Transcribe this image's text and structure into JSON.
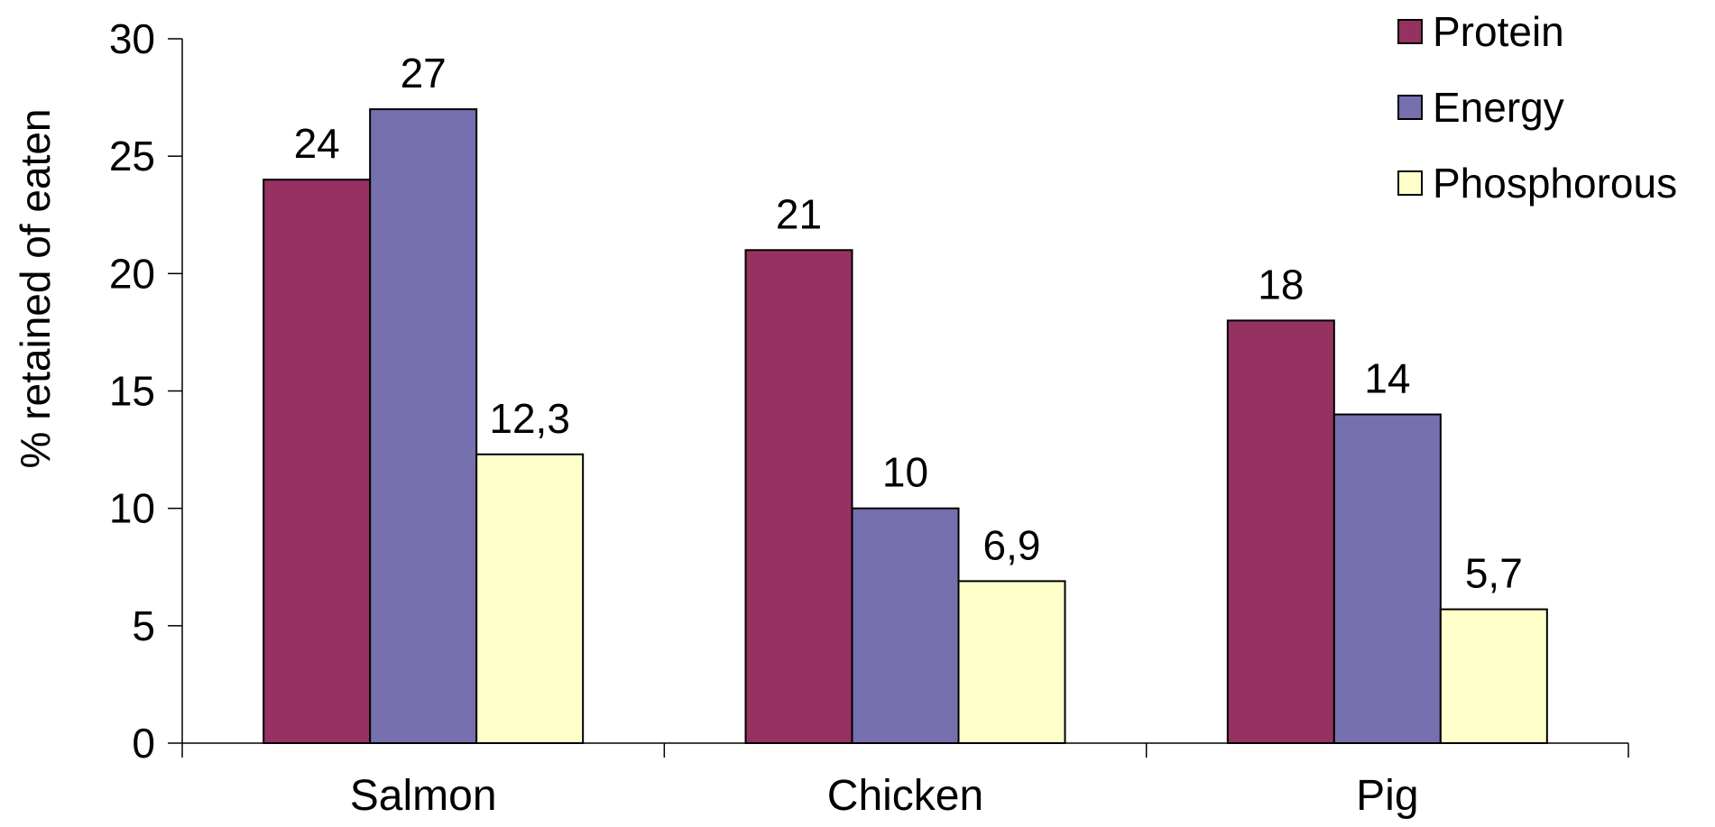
{
  "chart_data": {
    "type": "bar",
    "title": "",
    "xlabel": "",
    "ylabel": "% retained of eaten",
    "categories": [
      "Salmon",
      "Chicken",
      "Pig"
    ],
    "series": [
      {
        "name": "Protein",
        "values": [
          24,
          21,
          18
        ],
        "labels": [
          "24",
          "21",
          "18"
        ],
        "color": "#953262"
      },
      {
        "name": "Energy",
        "values": [
          27,
          10,
          14
        ],
        "labels": [
          "27",
          "10",
          "14"
        ],
        "color": "#7770AE"
      },
      {
        "name": "Phosphorous",
        "values": [
          12.3,
          6.9,
          5.7
        ],
        "labels": [
          "12,3",
          "6,9",
          "5,7"
        ],
        "color": "#FFFFCC"
      }
    ],
    "ylim": [
      0,
      30
    ],
    "yticks": [
      "0",
      "5",
      "10",
      "15",
      "20",
      "25",
      "30"
    ],
    "grid": false,
    "legend": "top-right"
  }
}
